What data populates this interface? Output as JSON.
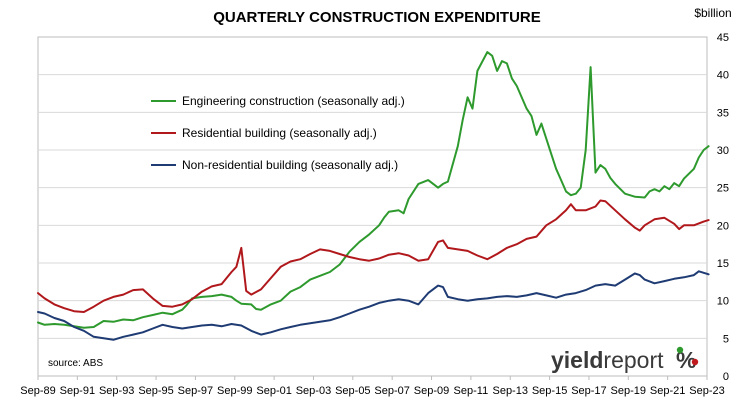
{
  "chart_data": {
    "type": "line",
    "title": "QUARTERLY CONSTRUCTION EXPENDITURE",
    "unit_label": "$billion",
    "ylim": [
      0,
      45
    ],
    "yticks": [
      0,
      5,
      10,
      15,
      20,
      25,
      30,
      35,
      40,
      45
    ],
    "x_start": 1989.667,
    "x_end": 2023.667,
    "xticks": [
      {
        "label": "Sep-89",
        "value": 1989.667
      },
      {
        "label": "Sep-91",
        "value": 1991.667
      },
      {
        "label": "Sep-93",
        "value": 1993.667
      },
      {
        "label": "Sep-95",
        "value": 1995.667
      },
      {
        "label": "Sep-97",
        "value": 1997.667
      },
      {
        "label": "Sep-99",
        "value": 1999.667
      },
      {
        "label": "Sep-01",
        "value": 2001.667
      },
      {
        "label": "Sep-03",
        "value": 2003.667
      },
      {
        "label": "Sep-05",
        "value": 2005.667
      },
      {
        "label": "Sep-07",
        "value": 2007.667
      },
      {
        "label": "Sep-09",
        "value": 2009.667
      },
      {
        "label": "Sep-11",
        "value": 2011.667
      },
      {
        "label": "Sep-13",
        "value": 2013.667
      },
      {
        "label": "Sep-15",
        "value": 2015.667
      },
      {
        "label": "Sep-17",
        "value": 2017.667
      },
      {
        "label": "Sep-19",
        "value": 2019.667
      },
      {
        "label": "Sep-21",
        "value": 2021.667
      },
      {
        "label": "Sep-23",
        "value": 2023.667
      }
    ],
    "grid": "horizontal",
    "legend_position": "top-left",
    "series": [
      {
        "name": "Engineering construction (seasonally adj.)",
        "color": "#2e9a2e",
        "points": [
          [
            1989.667,
            7.1
          ],
          [
            1990.0,
            6.8
          ],
          [
            1990.5,
            6.9
          ],
          [
            1991.0,
            6.8
          ],
          [
            1991.5,
            6.6
          ],
          [
            1992.0,
            6.4
          ],
          [
            1992.5,
            6.5
          ],
          [
            1993.0,
            7.3
          ],
          [
            1993.5,
            7.2
          ],
          [
            1994.0,
            7.5
          ],
          [
            1994.5,
            7.4
          ],
          [
            1995.0,
            7.8
          ],
          [
            1995.5,
            8.1
          ],
          [
            1996.0,
            8.4
          ],
          [
            1996.5,
            8.2
          ],
          [
            1997.0,
            8.8
          ],
          [
            1997.25,
            9.5
          ],
          [
            1997.5,
            10.3
          ],
          [
            1998.0,
            10.5
          ],
          [
            1998.5,
            10.6
          ],
          [
            1999.0,
            10.8
          ],
          [
            1999.5,
            10.5
          ],
          [
            1999.75,
            10.0
          ],
          [
            2000.0,
            9.6
          ],
          [
            2000.5,
            9.5
          ],
          [
            2000.75,
            8.9
          ],
          [
            2001.0,
            8.8
          ],
          [
            2001.5,
            9.5
          ],
          [
            2002.0,
            10.0
          ],
          [
            2002.5,
            11.2
          ],
          [
            2003.0,
            11.8
          ],
          [
            2003.5,
            12.8
          ],
          [
            2004.0,
            13.3
          ],
          [
            2004.5,
            13.8
          ],
          [
            2005.0,
            14.8
          ],
          [
            2005.5,
            16.5
          ],
          [
            2006.0,
            17.8
          ],
          [
            2006.5,
            18.8
          ],
          [
            2007.0,
            20.0
          ],
          [
            2007.25,
            21.0
          ],
          [
            2007.5,
            21.8
          ],
          [
            2008.0,
            22.0
          ],
          [
            2008.25,
            21.6
          ],
          [
            2008.5,
            23.5
          ],
          [
            2009.0,
            25.5
          ],
          [
            2009.5,
            26.0
          ],
          [
            2010.0,
            25.0
          ],
          [
            2010.25,
            25.5
          ],
          [
            2010.5,
            25.8
          ],
          [
            2011.0,
            30.5
          ],
          [
            2011.25,
            34.0
          ],
          [
            2011.5,
            37.0
          ],
          [
            2011.75,
            35.5
          ],
          [
            2012.0,
            40.5
          ],
          [
            2012.5,
            43.0
          ],
          [
            2012.75,
            42.5
          ],
          [
            2013.0,
            40.5
          ],
          [
            2013.25,
            41.8
          ],
          [
            2013.5,
            41.5
          ],
          [
            2013.75,
            39.5
          ],
          [
            2014.0,
            38.5
          ],
          [
            2014.5,
            35.5
          ],
          [
            2014.75,
            34.5
          ],
          [
            2015.0,
            32.0
          ],
          [
            2015.25,
            33.5
          ],
          [
            2015.75,
            29.5
          ],
          [
            2016.0,
            27.5
          ],
          [
            2016.25,
            26.0
          ],
          [
            2016.5,
            24.5
          ],
          [
            2016.75,
            24.0
          ],
          [
            2017.0,
            24.2
          ],
          [
            2017.25,
            25.0
          ],
          [
            2017.5,
            30.0
          ],
          [
            2017.75,
            41.0
          ],
          [
            2018.0,
            27.0
          ],
          [
            2018.25,
            28.0
          ],
          [
            2018.5,
            27.5
          ],
          [
            2018.75,
            26.3
          ],
          [
            2019.0,
            25.5
          ],
          [
            2019.5,
            24.2
          ],
          [
            2020.0,
            23.8
          ],
          [
            2020.5,
            23.7
          ],
          [
            2020.75,
            24.5
          ],
          [
            2021.0,
            24.8
          ],
          [
            2021.25,
            24.5
          ],
          [
            2021.5,
            25.2
          ],
          [
            2021.75,
            24.8
          ],
          [
            2022.0,
            25.6
          ],
          [
            2022.25,
            25.2
          ],
          [
            2022.5,
            26.2
          ],
          [
            2023.0,
            27.5
          ],
          [
            2023.25,
            29.0
          ],
          [
            2023.5,
            30.0
          ],
          [
            2023.75,
            30.5
          ]
        ]
      },
      {
        "name": "Residential building (seasonally adj.)",
        "color": "#b0181c",
        "points": [
          [
            1989.667,
            11.0
          ],
          [
            1990.0,
            10.3
          ],
          [
            1990.5,
            9.5
          ],
          [
            1991.0,
            9.0
          ],
          [
            1991.5,
            8.6
          ],
          [
            1992.0,
            8.5
          ],
          [
            1992.5,
            9.2
          ],
          [
            1993.0,
            10.0
          ],
          [
            1993.5,
            10.5
          ],
          [
            1994.0,
            10.8
          ],
          [
            1994.5,
            11.4
          ],
          [
            1995.0,
            11.5
          ],
          [
            1995.5,
            10.3
          ],
          [
            1996.0,
            9.3
          ],
          [
            1996.5,
            9.2
          ],
          [
            1997.0,
            9.5
          ],
          [
            1997.5,
            10.2
          ],
          [
            1998.0,
            11.2
          ],
          [
            1998.5,
            11.9
          ],
          [
            1999.0,
            12.2
          ],
          [
            1999.5,
            13.8
          ],
          [
            1999.75,
            14.5
          ],
          [
            2000.0,
            17.0
          ],
          [
            2000.25,
            11.3
          ],
          [
            2000.5,
            10.8
          ],
          [
            2001.0,
            11.5
          ],
          [
            2001.5,
            13.0
          ],
          [
            2002.0,
            14.5
          ],
          [
            2002.5,
            15.2
          ],
          [
            2003.0,
            15.5
          ],
          [
            2003.5,
            16.2
          ],
          [
            2004.0,
            16.8
          ],
          [
            2004.5,
            16.6
          ],
          [
            2005.0,
            16.2
          ],
          [
            2005.5,
            15.8
          ],
          [
            2006.0,
            15.5
          ],
          [
            2006.5,
            15.3
          ],
          [
            2007.0,
            15.6
          ],
          [
            2007.5,
            16.1
          ],
          [
            2008.0,
            16.3
          ],
          [
            2008.5,
            16.0
          ],
          [
            2009.0,
            15.3
          ],
          [
            2009.5,
            15.5
          ],
          [
            2010.0,
            17.8
          ],
          [
            2010.25,
            18.0
          ],
          [
            2010.5,
            17.0
          ],
          [
            2011.0,
            16.8
          ],
          [
            2011.5,
            16.6
          ],
          [
            2012.0,
            16.0
          ],
          [
            2012.5,
            15.5
          ],
          [
            2013.0,
            16.2
          ],
          [
            2013.5,
            17.0
          ],
          [
            2014.0,
            17.5
          ],
          [
            2014.5,
            18.2
          ],
          [
            2015.0,
            18.5
          ],
          [
            2015.5,
            20.0
          ],
          [
            2016.0,
            20.8
          ],
          [
            2016.5,
            22.0
          ],
          [
            2016.75,
            22.8
          ],
          [
            2017.0,
            22.0
          ],
          [
            2017.5,
            22.0
          ],
          [
            2018.0,
            22.5
          ],
          [
            2018.25,
            23.3
          ],
          [
            2018.5,
            23.2
          ],
          [
            2019.0,
            22.0
          ],
          [
            2019.5,
            20.8
          ],
          [
            2020.0,
            19.7
          ],
          [
            2020.25,
            19.3
          ],
          [
            2020.5,
            20.0
          ],
          [
            2021.0,
            20.8
          ],
          [
            2021.5,
            21.0
          ],
          [
            2022.0,
            20.2
          ],
          [
            2022.25,
            19.5
          ],
          [
            2022.5,
            20.0
          ],
          [
            2023.0,
            20.0
          ],
          [
            2023.5,
            20.5
          ],
          [
            2023.75,
            20.7
          ]
        ]
      },
      {
        "name": "Non-residential building (seasonally adj.)",
        "color": "#1f3b73",
        "points": [
          [
            1989.667,
            8.5
          ],
          [
            1990.0,
            8.3
          ],
          [
            1990.5,
            7.7
          ],
          [
            1991.0,
            7.3
          ],
          [
            1991.5,
            6.5
          ],
          [
            1992.0,
            6.0
          ],
          [
            1992.5,
            5.2
          ],
          [
            1993.0,
            5.0
          ],
          [
            1993.5,
            4.8
          ],
          [
            1994.0,
            5.2
          ],
          [
            1994.5,
            5.5
          ],
          [
            1995.0,
            5.8
          ],
          [
            1995.5,
            6.3
          ],
          [
            1996.0,
            6.8
          ],
          [
            1996.5,
            6.5
          ],
          [
            1997.0,
            6.3
          ],
          [
            1997.5,
            6.5
          ],
          [
            1998.0,
            6.7
          ],
          [
            1998.5,
            6.8
          ],
          [
            1999.0,
            6.6
          ],
          [
            1999.5,
            6.9
          ],
          [
            2000.0,
            6.7
          ],
          [
            2000.5,
            6.0
          ],
          [
            2001.0,
            5.5
          ],
          [
            2001.5,
            5.8
          ],
          [
            2002.0,
            6.2
          ],
          [
            2002.5,
            6.5
          ],
          [
            2003.0,
            6.8
          ],
          [
            2003.5,
            7.0
          ],
          [
            2004.0,
            7.2
          ],
          [
            2004.5,
            7.4
          ],
          [
            2005.0,
            7.8
          ],
          [
            2005.5,
            8.3
          ],
          [
            2006.0,
            8.8
          ],
          [
            2006.5,
            9.2
          ],
          [
            2007.0,
            9.7
          ],
          [
            2007.5,
            10.0
          ],
          [
            2008.0,
            10.2
          ],
          [
            2008.5,
            10.0
          ],
          [
            2009.0,
            9.5
          ],
          [
            2009.5,
            11.0
          ],
          [
            2010.0,
            12.0
          ],
          [
            2010.25,
            11.8
          ],
          [
            2010.5,
            10.5
          ],
          [
            2011.0,
            10.2
          ],
          [
            2011.5,
            10.0
          ],
          [
            2012.0,
            10.2
          ],
          [
            2012.5,
            10.3
          ],
          [
            2013.0,
            10.5
          ],
          [
            2013.5,
            10.6
          ],
          [
            2014.0,
            10.5
          ],
          [
            2014.5,
            10.7
          ],
          [
            2015.0,
            11.0
          ],
          [
            2015.5,
            10.7
          ],
          [
            2016.0,
            10.4
          ],
          [
            2016.5,
            10.8
          ],
          [
            2017.0,
            11.0
          ],
          [
            2017.5,
            11.4
          ],
          [
            2018.0,
            12.0
          ],
          [
            2018.5,
            12.2
          ],
          [
            2019.0,
            12.0
          ],
          [
            2019.5,
            12.8
          ],
          [
            2020.0,
            13.6
          ],
          [
            2020.25,
            13.4
          ],
          [
            2020.5,
            12.8
          ],
          [
            2021.0,
            12.3
          ],
          [
            2021.5,
            12.6
          ],
          [
            2022.0,
            12.9
          ],
          [
            2022.5,
            13.1
          ],
          [
            2023.0,
            13.4
          ],
          [
            2023.25,
            13.9
          ],
          [
            2023.75,
            13.5
          ]
        ]
      }
    ],
    "annotation": "source: ABS",
    "logo": {
      "text_bold": "yield",
      "text_light": "report",
      "symbol": "%"
    }
  }
}
